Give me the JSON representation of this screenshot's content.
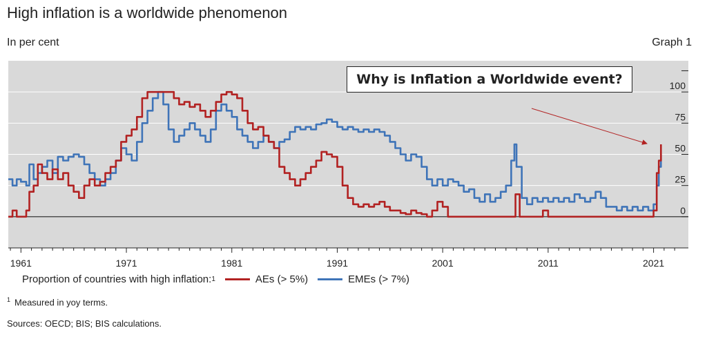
{
  "header": {
    "title": "High inflation is a worldwide phenomenon",
    "unit": "In per cent",
    "graph_label": "Graph 1"
  },
  "callout": {
    "text": "Why is Inflation a Worldwide event?"
  },
  "legend": {
    "prefix": "Proportion of countries with high inflation:",
    "prefix_sup": "1",
    "items": [
      "AEs (> 5%)",
      "EMEs (> 7%)"
    ]
  },
  "footnote": {
    "number": "1",
    "text": "Measured in yoy terms."
  },
  "sources": "Sources: OECD; BIS; BIS calculations.",
  "colors": {
    "aes": "#b22222",
    "emes": "#3f74b8",
    "plot_bg": "#d9d9d9",
    "arrow": "#b22222"
  },
  "chart_data": {
    "type": "line",
    "xlabel": "",
    "ylabel": "",
    "xlim": [
      1959.8,
      2024.3
    ],
    "ylim": [
      -25,
      125
    ],
    "x_ticks": [
      "1961",
      "1971",
      "1981",
      "1991",
      "2001",
      "2011",
      "2021"
    ],
    "y_ticks": [
      "0",
      "25",
      "50",
      "75",
      "100"
    ],
    "grid": "horizontal",
    "legend_position": "bottom",
    "annotations": [
      "Why is Inflation a Worldwide event?"
    ],
    "series": [
      {
        "name": "AEs (> 5%)",
        "points": [
          [
            1959.8,
            0
          ],
          [
            1960.2,
            5
          ],
          [
            1960.6,
            0
          ],
          [
            1961.0,
            0
          ],
          [
            1961.5,
            5
          ],
          [
            1961.8,
            20
          ],
          [
            1962.2,
            25
          ],
          [
            1962.6,
            42
          ],
          [
            1963.0,
            35
          ],
          [
            1963.5,
            30
          ],
          [
            1964.0,
            38
          ],
          [
            1964.5,
            30
          ],
          [
            1965.0,
            35
          ],
          [
            1965.5,
            25
          ],
          [
            1966.0,
            20
          ],
          [
            1966.5,
            15
          ],
          [
            1967.0,
            25
          ],
          [
            1967.5,
            30
          ],
          [
            1968.0,
            25
          ],
          [
            1968.5,
            28
          ],
          [
            1969.0,
            35
          ],
          [
            1969.5,
            40
          ],
          [
            1970.0,
            45
          ],
          [
            1970.5,
            60
          ],
          [
            1971.0,
            65
          ],
          [
            1971.5,
            70
          ],
          [
            1972.0,
            80
          ],
          [
            1972.5,
            95
          ],
          [
            1973.0,
            100
          ],
          [
            1973.5,
            100
          ],
          [
            1974.0,
            100
          ],
          [
            1974.5,
            100
          ],
          [
            1975.0,
            100
          ],
          [
            1975.5,
            95
          ],
          [
            1976.0,
            90
          ],
          [
            1976.5,
            92
          ],
          [
            1977.0,
            88
          ],
          [
            1977.5,
            90
          ],
          [
            1978.0,
            85
          ],
          [
            1978.5,
            80
          ],
          [
            1979.0,
            85
          ],
          [
            1979.5,
            92
          ],
          [
            1980.0,
            98
          ],
          [
            1980.5,
            100
          ],
          [
            1981.0,
            98
          ],
          [
            1981.5,
            95
          ],
          [
            1982.0,
            85
          ],
          [
            1982.5,
            75
          ],
          [
            1983.0,
            70
          ],
          [
            1983.5,
            72
          ],
          [
            1984.0,
            65
          ],
          [
            1984.5,
            60
          ],
          [
            1985.0,
            55
          ],
          [
            1985.5,
            40
          ],
          [
            1986.0,
            35
          ],
          [
            1986.5,
            30
          ],
          [
            1987.0,
            25
          ],
          [
            1987.5,
            30
          ],
          [
            1988.0,
            35
          ],
          [
            1988.5,
            40
          ],
          [
            1989.0,
            45
          ],
          [
            1989.5,
            52
          ],
          [
            1990.0,
            50
          ],
          [
            1990.5,
            48
          ],
          [
            1991.0,
            40
          ],
          [
            1991.5,
            25
          ],
          [
            1992.0,
            15
          ],
          [
            1992.5,
            10
          ],
          [
            1993.0,
            8
          ],
          [
            1993.5,
            10
          ],
          [
            1994.0,
            8
          ],
          [
            1994.5,
            10
          ],
          [
            1995.0,
            12
          ],
          [
            1995.5,
            8
          ],
          [
            1996.0,
            5
          ],
          [
            1996.5,
            5
          ],
          [
            1997.0,
            3
          ],
          [
            1997.5,
            2
          ],
          [
            1998.0,
            5
          ],
          [
            1998.5,
            3
          ],
          [
            1999.0,
            2
          ],
          [
            1999.5,
            0
          ],
          [
            2000.0,
            5
          ],
          [
            2000.5,
            12
          ],
          [
            2001.0,
            8
          ],
          [
            2001.5,
            0
          ],
          [
            2002.0,
            0
          ],
          [
            2004.0,
            0
          ],
          [
            2006.0,
            0
          ],
          [
            2007.5,
            0
          ],
          [
            2007.9,
            18
          ],
          [
            2008.3,
            0
          ],
          [
            2010.0,
            0
          ],
          [
            2010.5,
            5
          ],
          [
            2011.0,
            0
          ],
          [
            2014.0,
            0
          ],
          [
            2018.0,
            0
          ],
          [
            2020.5,
            0
          ],
          [
            2021.0,
            5
          ],
          [
            2021.3,
            35
          ],
          [
            2021.5,
            45
          ],
          [
            2021.7,
            58
          ]
        ]
      },
      {
        "name": "EMEs (> 7%)",
        "points": [
          [
            1959.8,
            30
          ],
          [
            1960.2,
            25
          ],
          [
            1960.6,
            30
          ],
          [
            1961.0,
            28
          ],
          [
            1961.5,
            25
          ],
          [
            1961.8,
            42
          ],
          [
            1962.2,
            30
          ],
          [
            1962.6,
            35
          ],
          [
            1963.0,
            40
          ],
          [
            1963.5,
            45
          ],
          [
            1964.0,
            35
          ],
          [
            1964.5,
            48
          ],
          [
            1965.0,
            45
          ],
          [
            1965.5,
            48
          ],
          [
            1966.0,
            50
          ],
          [
            1966.5,
            48
          ],
          [
            1967.0,
            42
          ],
          [
            1967.5,
            35
          ],
          [
            1968.0,
            30
          ],
          [
            1968.5,
            25
          ],
          [
            1969.0,
            30
          ],
          [
            1969.5,
            35
          ],
          [
            1970.0,
            45
          ],
          [
            1970.5,
            55
          ],
          [
            1971.0,
            50
          ],
          [
            1971.5,
            45
          ],
          [
            1972.0,
            60
          ],
          [
            1972.5,
            75
          ],
          [
            1973.0,
            85
          ],
          [
            1973.5,
            95
          ],
          [
            1974.0,
            100
          ],
          [
            1974.5,
            90
          ],
          [
            1975.0,
            70
          ],
          [
            1975.5,
            60
          ],
          [
            1976.0,
            65
          ],
          [
            1976.5,
            70
          ],
          [
            1977.0,
            75
          ],
          [
            1977.5,
            70
          ],
          [
            1978.0,
            65
          ],
          [
            1978.5,
            60
          ],
          [
            1979.0,
            70
          ],
          [
            1979.5,
            85
          ],
          [
            1980.0,
            90
          ],
          [
            1980.5,
            85
          ],
          [
            1981.0,
            80
          ],
          [
            1981.5,
            70
          ],
          [
            1982.0,
            65
          ],
          [
            1982.5,
            60
          ],
          [
            1983.0,
            55
          ],
          [
            1983.5,
            60
          ],
          [
            1984.0,
            65
          ],
          [
            1984.5,
            60
          ],
          [
            1985.0,
            55
          ],
          [
            1985.5,
            60
          ],
          [
            1986.0,
            62
          ],
          [
            1986.5,
            68
          ],
          [
            1987.0,
            72
          ],
          [
            1987.5,
            70
          ],
          [
            1988.0,
            72
          ],
          [
            1988.5,
            70
          ],
          [
            1989.0,
            74
          ],
          [
            1989.5,
            75
          ],
          [
            1990.0,
            78
          ],
          [
            1990.5,
            76
          ],
          [
            1991.0,
            72
          ],
          [
            1991.5,
            70
          ],
          [
            1992.0,
            72
          ],
          [
            1992.5,
            70
          ],
          [
            1993.0,
            68
          ],
          [
            1993.5,
            70
          ],
          [
            1994.0,
            68
          ],
          [
            1994.5,
            70
          ],
          [
            1995.0,
            68
          ],
          [
            1995.5,
            65
          ],
          [
            1996.0,
            60
          ],
          [
            1996.5,
            55
          ],
          [
            1997.0,
            50
          ],
          [
            1997.5,
            45
          ],
          [
            1998.0,
            50
          ],
          [
            1998.5,
            48
          ],
          [
            1999.0,
            40
          ],
          [
            1999.5,
            30
          ],
          [
            2000.0,
            25
          ],
          [
            2000.5,
            30
          ],
          [
            2001.0,
            25
          ],
          [
            2001.5,
            30
          ],
          [
            2002.0,
            28
          ],
          [
            2002.5,
            25
          ],
          [
            2003.0,
            20
          ],
          [
            2003.5,
            22
          ],
          [
            2004.0,
            15
          ],
          [
            2004.5,
            12
          ],
          [
            2005.0,
            18
          ],
          [
            2005.5,
            12
          ],
          [
            2006.0,
            15
          ],
          [
            2006.5,
            20
          ],
          [
            2007.0,
            25
          ],
          [
            2007.5,
            45
          ],
          [
            2007.8,
            58
          ],
          [
            2008.0,
            40
          ],
          [
            2008.5,
            15
          ],
          [
            2009.0,
            10
          ],
          [
            2009.5,
            15
          ],
          [
            2010.0,
            12
          ],
          [
            2010.5,
            15
          ],
          [
            2011.0,
            12
          ],
          [
            2011.5,
            15
          ],
          [
            2012.0,
            12
          ],
          [
            2012.5,
            15
          ],
          [
            2013.0,
            12
          ],
          [
            2013.5,
            18
          ],
          [
            2014.0,
            15
          ],
          [
            2014.5,
            12
          ],
          [
            2015.0,
            15
          ],
          [
            2015.5,
            20
          ],
          [
            2016.0,
            15
          ],
          [
            2016.5,
            8
          ],
          [
            2017.0,
            8
          ],
          [
            2017.5,
            5
          ],
          [
            2018.0,
            8
          ],
          [
            2018.5,
            5
          ],
          [
            2019.0,
            8
          ],
          [
            2019.5,
            5
          ],
          [
            2020.0,
            8
          ],
          [
            2020.5,
            5
          ],
          [
            2021.0,
            10
          ],
          [
            2021.3,
            25
          ],
          [
            2021.5,
            40
          ],
          [
            2021.7,
            50
          ]
        ]
      }
    ]
  }
}
